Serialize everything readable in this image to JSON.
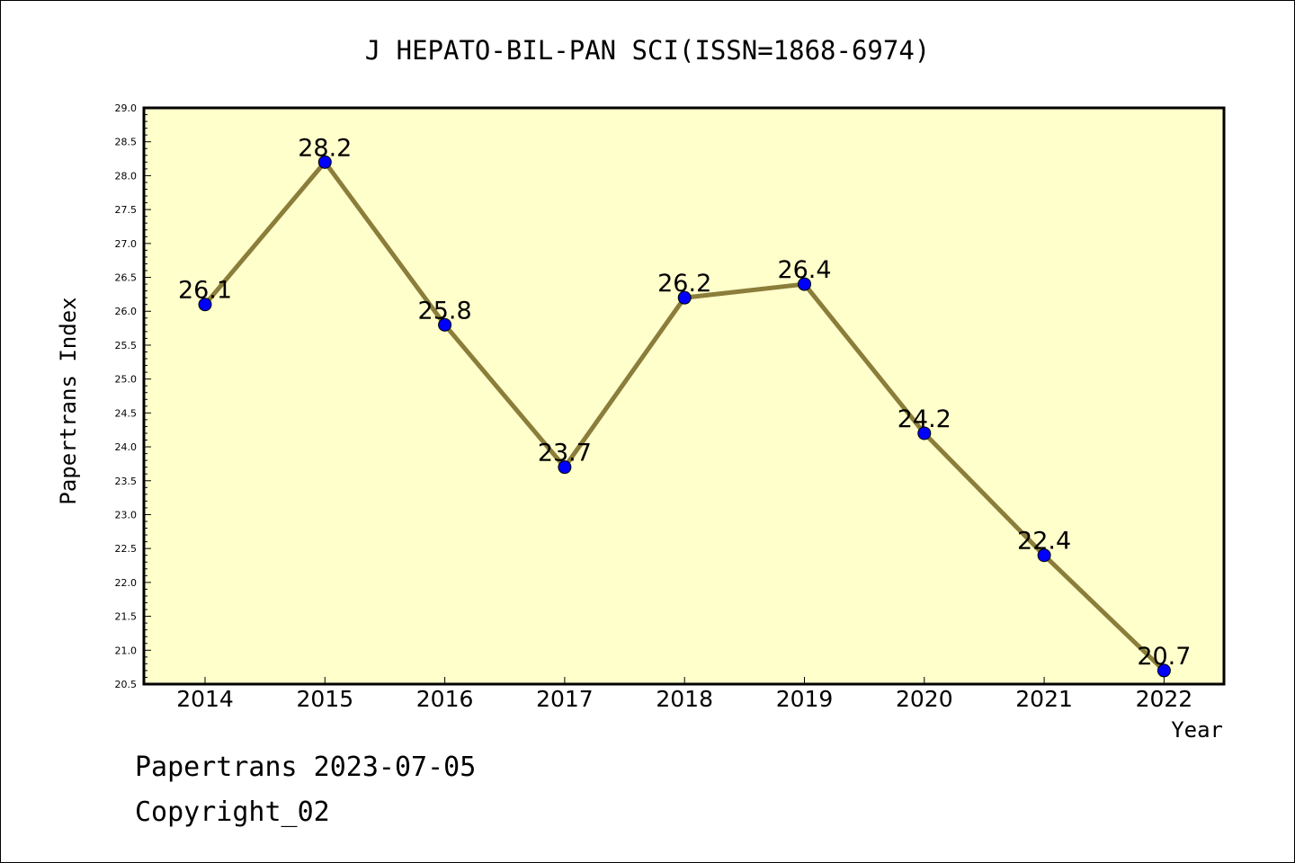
{
  "chart_data": {
    "type": "line",
    "title": "J HEPATO-BIL-PAN SCI(ISSN=1868-6974)",
    "xlabel": "Year",
    "ylabel": "Papertrans Index",
    "categories": [
      "2014",
      "2015",
      "2016",
      "2017",
      "2018",
      "2019",
      "2020",
      "2021",
      "2022"
    ],
    "series": [
      {
        "values": [
          26.1,
          28.2,
          25.8,
          23.7,
          26.2,
          26.4,
          24.2,
          22.4,
          20.7
        ],
        "labels": [
          "26.1",
          "28.2",
          "25.8",
          "23.7",
          "26.2",
          "26.4",
          "24.2",
          "22.4",
          "20.7"
        ]
      }
    ],
    "ylim": [
      20.5,
      29.0
    ],
    "yticks": [
      "20.5",
      "21.0",
      "21.5",
      "22.0",
      "22.5",
      "23.0",
      "23.5",
      "24.0",
      "24.5",
      "25.0",
      "25.5",
      "26.0",
      "26.5",
      "27.0",
      "27.5",
      "28.0",
      "28.5",
      "29.0"
    ],
    "grid": false,
    "legend": "none",
    "colors": {
      "plot_background": "#ffffcc",
      "line": "#8b7d3a",
      "marker": "#0000ff"
    }
  },
  "footer": {
    "line1": "Papertrans 2023-07-05",
    "line2": "Copyright_02"
  }
}
